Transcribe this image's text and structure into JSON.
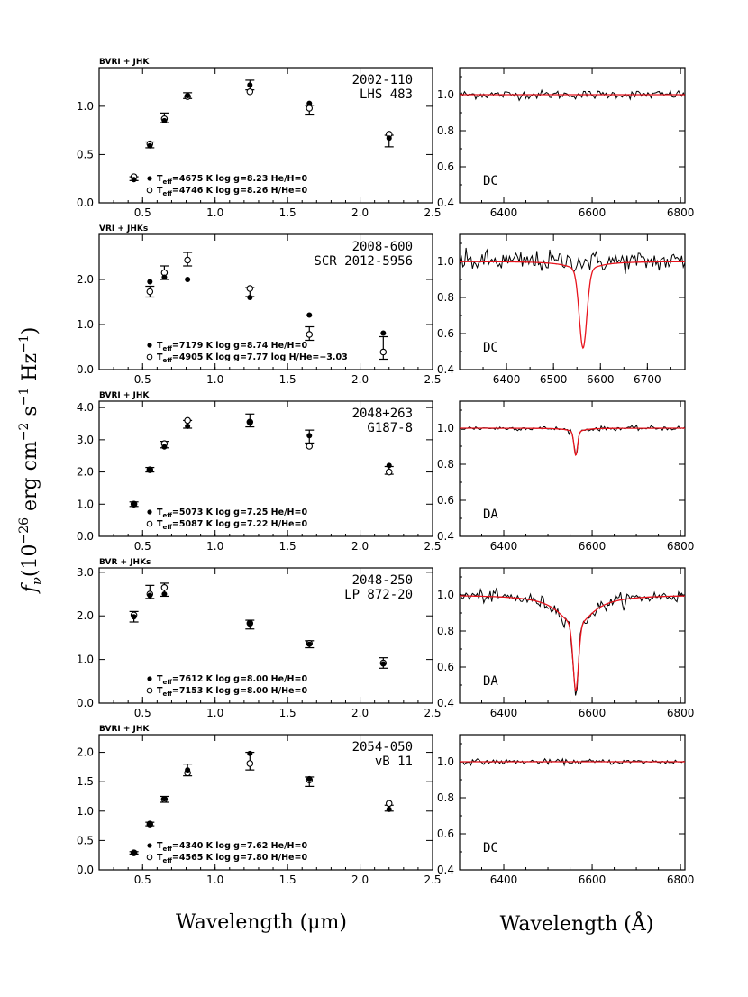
{
  "figure": {
    "ylabel": {
      "f": "f",
      "nu": "ν",
      "rest": "(10",
      "exp1": "−26",
      "mid": " erg cm",
      "exp2": "−2",
      "s": " s",
      "exp3": "−1",
      "hz": " Hz",
      "exp4": "−1",
      "close": ")"
    },
    "xlabel_left": "Wavelength (μm)",
    "xlabel_right": "Wavelength (Å)"
  },
  "chart_data": [
    {
      "type": "scatter",
      "panel": "sed",
      "filters": "BVRI + JHK",
      "name": "2002-110",
      "alias": "LHS 483",
      "xlim": [
        0.2,
        2.5
      ],
      "ylim": [
        0.0,
        1.4
      ],
      "xticks": [
        0.5,
        1.0,
        1.5,
        2.0,
        2.5
      ],
      "xtick_labels": [
        "0.5",
        "1.0",
        "1.5",
        "2.0",
        "2.5"
      ],
      "yticks": [
        0.0,
        0.5,
        1.0
      ],
      "ytick_labels": [
        "0.0",
        "0.5",
        "1.0"
      ],
      "observed": [
        {
          "x": 0.44,
          "y": 0.25,
          "err": 0.02
        },
        {
          "x": 0.55,
          "y": 0.6,
          "err": 0.03
        },
        {
          "x": 0.65,
          "y": 0.88,
          "err": 0.05
        },
        {
          "x": 0.81,
          "y": 1.11,
          "err": 0.03
        },
        {
          "x": 1.24,
          "y": 1.22,
          "err": 0.05
        },
        {
          "x": 1.65,
          "y": 0.96,
          "err": 0.05
        },
        {
          "x": 2.2,
          "y": 0.64,
          "err": 0.06
        }
      ],
      "model_filled": [
        {
          "x": 0.44,
          "y": 0.24
        },
        {
          "x": 0.55,
          "y": 0.59
        },
        {
          "x": 0.65,
          "y": 0.85
        },
        {
          "x": 0.81,
          "y": 1.11
        },
        {
          "x": 1.24,
          "y": 1.22
        },
        {
          "x": 1.65,
          "y": 1.03
        },
        {
          "x": 2.2,
          "y": 0.67
        }
      ],
      "model_open": [
        {
          "x": 0.44,
          "y": 0.27
        },
        {
          "x": 0.55,
          "y": 0.61
        },
        {
          "x": 0.65,
          "y": 0.87
        },
        {
          "x": 0.81,
          "y": 1.1
        },
        {
          "x": 1.24,
          "y": 1.15
        },
        {
          "x": 1.65,
          "y": 0.98
        },
        {
          "x": 2.2,
          "y": 0.71
        }
      ],
      "legend": [
        {
          "marker": "filled",
          "text": "=4675 K  log g=8.23  He/H=0",
          "color": "#e8141d"
        },
        {
          "marker": "open",
          "text": "=4746 K  log g=8.26  H/He=0",
          "color": "#000000"
        }
      ]
    },
    {
      "type": "line",
      "panel": "spectrum",
      "spectral_type": "DC",
      "xlim": [
        6300,
        6810
      ],
      "ylim": [
        0.4,
        1.15
      ],
      "xticks": [
        6400,
        6600,
        6800
      ],
      "xtick_labels": [
        "6400",
        "6600",
        "6800"
      ],
      "yticks": [
        0.4,
        0.6,
        0.8,
        1.0
      ],
      "ytick_labels": [
        "0.4",
        "0.6",
        "0.8",
        "1.0"
      ],
      "noise": 0.012,
      "model": {
        "center": 6563,
        "depth": 0.0,
        "width": 10,
        "wing": 0,
        "wing_w": 40
      },
      "observed_offset": 0.0
    },
    {
      "type": "scatter",
      "panel": "sed",
      "filters": "VRI + JHKs",
      "name": "2008-600",
      "alias": "SCR 2012-5956",
      "xlim": [
        0.2,
        2.5
      ],
      "ylim": [
        0.0,
        3.0
      ],
      "xticks": [
        0.5,
        1.0,
        1.5,
        2.0,
        2.5
      ],
      "xtick_labels": [
        "0.5",
        "1.0",
        "1.5",
        "2.0",
        "2.5"
      ],
      "yticks": [
        0.0,
        1.0,
        2.0
      ],
      "ytick_labels": [
        "0.0",
        "1.0",
        "2.0"
      ],
      "observed": [
        {
          "x": 0.55,
          "y": 1.73,
          "err": 0.12
        },
        {
          "x": 0.65,
          "y": 2.15,
          "err": 0.15
        },
        {
          "x": 0.81,
          "y": 2.45,
          "err": 0.15
        },
        {
          "x": 1.24,
          "y": 1.72,
          "err": 0.1
        },
        {
          "x": 1.65,
          "y": 0.8,
          "err": 0.15
        },
        {
          "x": 2.16,
          "y": 0.48,
          "err": 0.25
        }
      ],
      "model_filled": [
        {
          "x": 0.55,
          "y": 1.95
        },
        {
          "x": 0.65,
          "y": 2.05
        },
        {
          "x": 0.81,
          "y": 2.0
        },
        {
          "x": 1.24,
          "y": 1.6
        },
        {
          "x": 1.65,
          "y": 1.21
        },
        {
          "x": 2.16,
          "y": 0.81
        }
      ],
      "model_open": [
        {
          "x": 0.55,
          "y": 1.73
        },
        {
          "x": 0.65,
          "y": 2.15
        },
        {
          "x": 0.81,
          "y": 2.43
        },
        {
          "x": 1.24,
          "y": 1.8
        },
        {
          "x": 1.65,
          "y": 0.78
        },
        {
          "x": 2.16,
          "y": 0.39
        }
      ],
      "legend": [
        {
          "marker": "filled",
          "text": "=7179 K  log g=8.74  He/H=0",
          "color": "#000000"
        },
        {
          "marker": "open",
          "text": "=4905 K  log g=7.77  log H/He=−3.03",
          "color": "#e8141d"
        }
      ]
    },
    {
      "type": "line",
      "panel": "spectrum",
      "spectral_type": "DC",
      "xlim": [
        6300,
        6780
      ],
      "ylim": [
        0.4,
        1.15
      ],
      "xticks": [
        6400,
        6500,
        6600,
        6700
      ],
      "xtick_labels": [
        "6400",
        "6500",
        "6600",
        "6700"
      ],
      "yticks": [
        0.4,
        0.6,
        0.8,
        1.0
      ],
      "ytick_labels": [
        "0.4",
        "0.6",
        "0.8",
        "1.0"
      ],
      "noise": 0.03,
      "model": {
        "center": 6563,
        "depth": 0.43,
        "width": 8,
        "wing": 0.05,
        "wing_w": 35
      },
      "observed_offset": 0.0,
      "observed_flat": true
    },
    {
      "type": "scatter",
      "panel": "sed",
      "filters": "BVRI + JHK",
      "name": "2048+263",
      "alias": "G187-8",
      "xlim": [
        0.2,
        2.5
      ],
      "ylim": [
        0.0,
        4.2
      ],
      "xticks": [
        0.5,
        1.0,
        1.5,
        2.0,
        2.5
      ],
      "xtick_labels": [
        "0.5",
        "1.0",
        "1.5",
        "2.0",
        "2.5"
      ],
      "yticks": [
        0.0,
        1.0,
        2.0,
        3.0,
        4.0
      ],
      "ytick_labels": [
        "0.0",
        "1.0",
        "2.0",
        "3.0",
        "4.0"
      ],
      "observed": [
        {
          "x": 0.44,
          "y": 1.0,
          "err": 0.07
        },
        {
          "x": 0.55,
          "y": 2.07,
          "err": 0.07
        },
        {
          "x": 0.65,
          "y": 2.85,
          "err": 0.1
        },
        {
          "x": 0.81,
          "y": 3.48,
          "err": 0.12
        },
        {
          "x": 1.24,
          "y": 3.6,
          "err": 0.2
        },
        {
          "x": 1.65,
          "y": 3.1,
          "err": 0.2
        },
        {
          "x": 2.2,
          "y": 2.05,
          "err": 0.12
        }
      ],
      "model_filled": [
        {
          "x": 0.44,
          "y": 1.0
        },
        {
          "x": 0.55,
          "y": 2.07
        },
        {
          "x": 0.65,
          "y": 2.78
        },
        {
          "x": 0.81,
          "y": 3.42
        },
        {
          "x": 1.24,
          "y": 3.55
        },
        {
          "x": 1.65,
          "y": 3.13
        },
        {
          "x": 2.2,
          "y": 2.2
        }
      ],
      "model_open": [
        {
          "x": 0.44,
          "y": 1.0
        },
        {
          "x": 0.55,
          "y": 2.07
        },
        {
          "x": 0.65,
          "y": 2.88
        },
        {
          "x": 0.81,
          "y": 3.6
        },
        {
          "x": 1.24,
          "y": 3.55
        },
        {
          "x": 1.65,
          "y": 2.8
        },
        {
          "x": 2.2,
          "y": 2.0
        }
      ],
      "legend": [
        {
          "marker": "filled",
          "text": "=5073 K  log g=7.25  He/H=0",
          "color": "#e8141d"
        },
        {
          "marker": "open",
          "text": "=5087 K  log g=7.22  H/He=0",
          "color": "#000000"
        }
      ]
    },
    {
      "type": "line",
      "panel": "spectrum",
      "spectral_type": "DA",
      "xlim": [
        6300,
        6810
      ],
      "ylim": [
        0.4,
        1.15
      ],
      "xticks": [
        6400,
        6600,
        6800
      ],
      "xtick_labels": [
        "6400",
        "6600",
        "6800"
      ],
      "yticks": [
        0.4,
        0.6,
        0.8,
        1.0
      ],
      "ytick_labels": [
        "0.4",
        "0.6",
        "0.8",
        "1.0"
      ],
      "noise": 0.006,
      "model": {
        "center": 6563,
        "depth": 0.13,
        "width": 4,
        "wing": 0.02,
        "wing_w": 20
      },
      "observed_offset": 0.0
    },
    {
      "type": "scatter",
      "panel": "sed",
      "filters": "BVR + JHKs",
      "name": "2048-250",
      "alias": "LP 872-20",
      "xlim": [
        0.2,
        2.5
      ],
      "ylim": [
        0.0,
        3.1
      ],
      "xticks": [
        0.5,
        1.0,
        1.5,
        2.0,
        2.5
      ],
      "xtick_labels": [
        "0.5",
        "1.0",
        "1.5",
        "2.0",
        "2.5"
      ],
      "yticks": [
        0.0,
        1.0,
        2.0,
        3.0
      ],
      "ytick_labels": [
        "0.0",
        "1.0",
        "2.0",
        "3.0"
      ],
      "observed": [
        {
          "x": 0.44,
          "y": 1.98,
          "err": 0.12
        },
        {
          "x": 0.55,
          "y": 2.55,
          "err": 0.15
        },
        {
          "x": 0.65,
          "y": 2.6,
          "err": 0.15
        },
        {
          "x": 1.24,
          "y": 1.8,
          "err": 0.1
        },
        {
          "x": 1.65,
          "y": 1.35,
          "err": 0.08
        },
        {
          "x": 2.16,
          "y": 0.92,
          "err": 0.12
        }
      ],
      "model_filled": [
        {
          "x": 0.44,
          "y": 1.98
        },
        {
          "x": 0.55,
          "y": 2.47
        },
        {
          "x": 0.65,
          "y": 2.5
        },
        {
          "x": 1.24,
          "y": 1.83
        },
        {
          "x": 1.65,
          "y": 1.35
        },
        {
          "x": 2.16,
          "y": 0.9
        }
      ],
      "model_open": [
        {
          "x": 0.44,
          "y": 2.02
        },
        {
          "x": 0.55,
          "y": 2.5
        },
        {
          "x": 0.65,
          "y": 2.65
        },
        {
          "x": 1.24,
          "y": 1.83
        },
        {
          "x": 1.65,
          "y": 1.37
        },
        {
          "x": 2.16,
          "y": 0.92
        }
      ],
      "legend": [
        {
          "marker": "filled",
          "text": "=7612 K  log g=8.00  He/H=0",
          "color": "#e8141d"
        },
        {
          "marker": "open",
          "text": "=7153 K  log g=8.00  H/He=0",
          "color": "#000000"
        }
      ]
    },
    {
      "type": "line",
      "panel": "spectrum",
      "spectral_type": "DA",
      "xlim": [
        6300,
        6810
      ],
      "ylim": [
        0.4,
        1.15
      ],
      "xticks": [
        6400,
        6600,
        6800
      ],
      "xtick_labels": [
        "6400",
        "6600",
        "6800"
      ],
      "yticks": [
        0.4,
        0.6,
        0.8,
        1.0
      ],
      "ytick_labels": [
        "0.4",
        "0.6",
        "0.8",
        "1.0"
      ],
      "noise": 0.018,
      "model": {
        "center": 6563,
        "depth": 0.36,
        "width": 6,
        "wing": 0.17,
        "wing_w": 45
      },
      "observed_offset": 0.0
    },
    {
      "type": "scatter",
      "panel": "sed",
      "filters": "BVRI + JHK",
      "name": "2054-050",
      "alias": "vB 11",
      "xlim": [
        0.2,
        2.5
      ],
      "ylim": [
        0.0,
        2.3
      ],
      "xticks": [
        0.5,
        1.0,
        1.5,
        2.0,
        2.5
      ],
      "xtick_labels": [
        "0.5",
        "1.0",
        "1.5",
        "2.0",
        "2.5"
      ],
      "yticks": [
        0.0,
        0.5,
        1.0,
        1.5,
        2.0
      ],
      "ytick_labels": [
        "0.0",
        "0.5",
        "1.0",
        "1.5",
        "2.0"
      ],
      "observed": [
        {
          "x": 0.44,
          "y": 0.29,
          "err": 0.02
        },
        {
          "x": 0.55,
          "y": 0.78,
          "err": 0.03
        },
        {
          "x": 0.65,
          "y": 1.2,
          "err": 0.05
        },
        {
          "x": 0.81,
          "y": 1.7,
          "err": 0.1
        },
        {
          "x": 1.24,
          "y": 1.85,
          "err": 0.15
        },
        {
          "x": 1.65,
          "y": 1.5,
          "err": 0.08
        },
        {
          "x": 2.2,
          "y": 1.05,
          "err": 0.05
        }
      ],
      "model_filled": [
        {
          "x": 0.44,
          "y": 0.29
        },
        {
          "x": 0.55,
          "y": 0.78
        },
        {
          "x": 0.65,
          "y": 1.21
        },
        {
          "x": 0.81,
          "y": 1.7
        },
        {
          "x": 1.24,
          "y": 1.98
        },
        {
          "x": 1.65,
          "y": 1.55
        },
        {
          "x": 2.2,
          "y": 1.03
        }
      ],
      "model_open": [
        {
          "x": 0.44,
          "y": 0.29
        },
        {
          "x": 0.55,
          "y": 0.78
        },
        {
          "x": 0.65,
          "y": 1.2
        },
        {
          "x": 0.81,
          "y": 1.65
        },
        {
          "x": 1.24,
          "y": 1.81
        },
        {
          "x": 1.65,
          "y": 1.53
        },
        {
          "x": 2.2,
          "y": 1.13
        }
      ],
      "legend": [
        {
          "marker": "filled",
          "text": "=4340 K  log g=7.62  He/H=0",
          "color": "#e8141d"
        },
        {
          "marker": "open",
          "text": "=4565 K  log g=7.80  H/He=0",
          "color": "#000000"
        }
      ]
    },
    {
      "type": "line",
      "panel": "spectrum",
      "spectral_type": "DC",
      "xlim": [
        6300,
        6810
      ],
      "ylim": [
        0.4,
        1.15
      ],
      "xticks": [
        6400,
        6600,
        6800
      ],
      "xtick_labels": [
        "6400",
        "6600",
        "6800"
      ],
      "yticks": [
        0.4,
        0.6,
        0.8,
        1.0
      ],
      "ytick_labels": [
        "0.4",
        "0.6",
        "0.8",
        "1.0"
      ],
      "noise": 0.007,
      "model": {
        "center": 6563,
        "depth": 0.0,
        "width": 10,
        "wing": 0,
        "wing_w": 40
      },
      "observed_offset": 0.0
    }
  ],
  "teff_label": "T",
  "teff_sub": "eff",
  "colors": {
    "model": "#e8141d",
    "ink": "#000000"
  }
}
